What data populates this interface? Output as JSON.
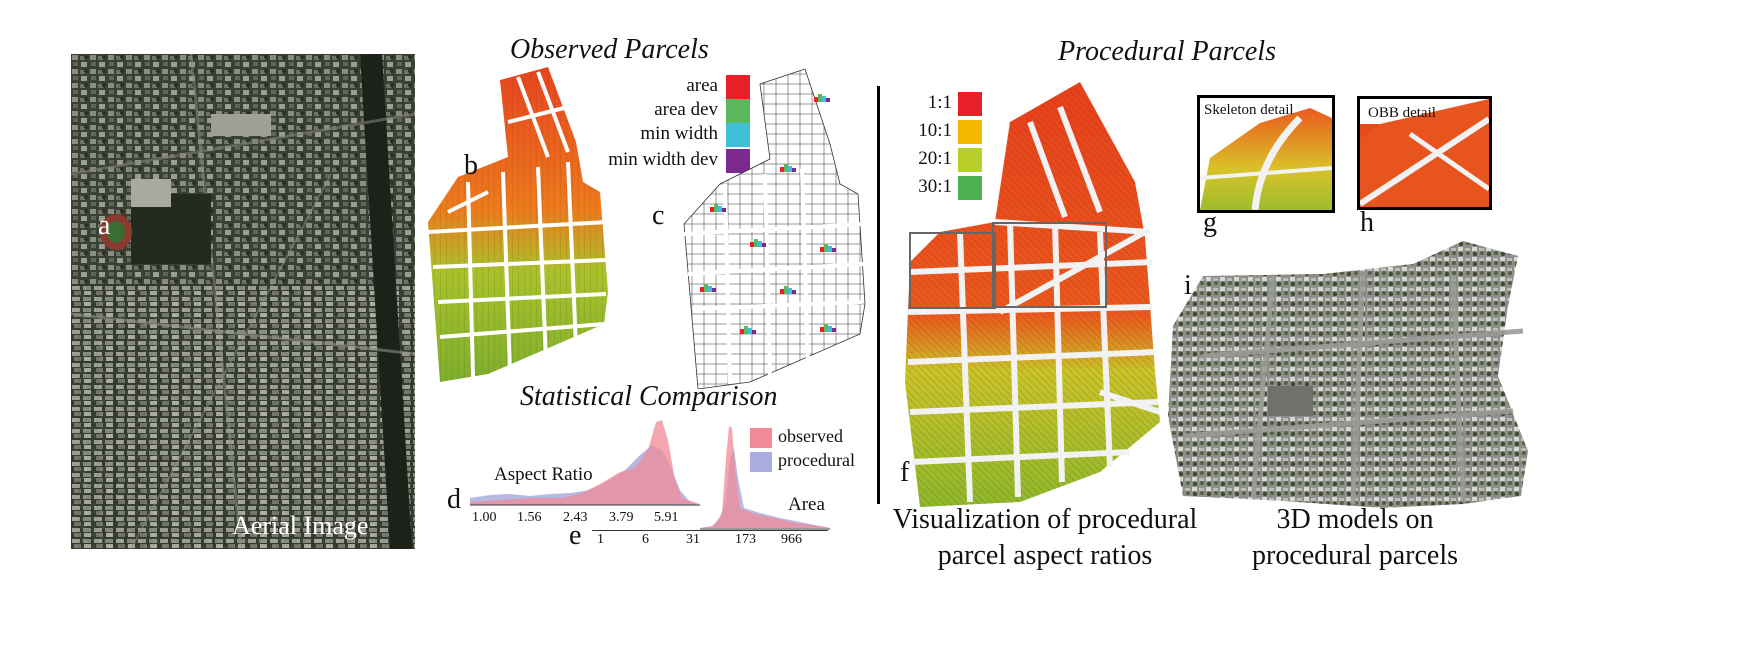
{
  "titles": {
    "observed": "Observed Parcels",
    "procedural": "Procedural Parcels",
    "statistical": "Statistical Comparison"
  },
  "panel_letters": {
    "a": "a",
    "b": "b",
    "c": "c",
    "d": "d",
    "e": "e",
    "f": "f",
    "g": "g",
    "h": "h",
    "i": "i"
  },
  "aerial": {
    "label": "Aerial Image"
  },
  "observed_legend": [
    {
      "label": "area",
      "color": "#e8202a"
    },
    {
      "label": "area dev",
      "color": "#5cb85c"
    },
    {
      "label": "min width",
      "color": "#40c0d8"
    },
    {
      "label": "min width dev",
      "color": "#7b2a8f"
    }
  ],
  "ratio_legend": [
    {
      "label": "1:1",
      "color": "#e8202a"
    },
    {
      "label": "10:1",
      "color": "#f5b800"
    },
    {
      "label": "20:1",
      "color": "#b8cf2a"
    },
    {
      "label": "30:1",
      "color": "#4caf50"
    }
  ],
  "details": {
    "skeleton": "Skeleton detail",
    "obb": "OBB detail"
  },
  "stats": {
    "series": [
      {
        "name": "observed",
        "color": "#f08a96"
      },
      {
        "name": "procedural",
        "color": "#a9aede"
      }
    ],
    "aspect": {
      "label": "Aspect Ratio",
      "ticks": [
        "1.00",
        "1.56",
        "2.43",
        "3.79",
        "5.91"
      ]
    },
    "area": {
      "label": "Area",
      "ticks": [
        "1",
        "6",
        "31",
        "173",
        "966"
      ]
    }
  },
  "captions": {
    "f": [
      "Visualization of procedural",
      "parcel aspect ratios"
    ],
    "i": [
      "3D models on",
      "procedural parcels"
    ]
  }
}
